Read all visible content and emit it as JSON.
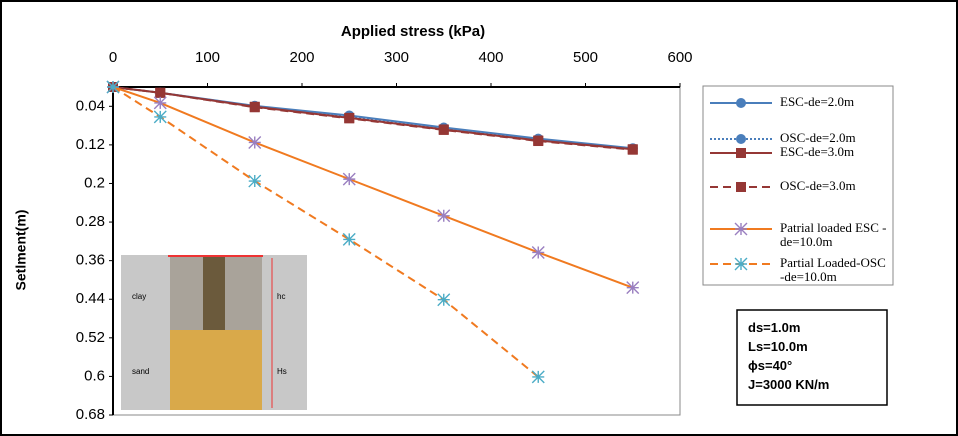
{
  "chart_data": {
    "type": "line",
    "title": "Applied stress (kPa)",
    "y_label": "Setlment(m)",
    "x": [
      0,
      50,
      150,
      250,
      350,
      450,
      550
    ],
    "xlim": [
      0,
      600
    ],
    "xticks": [
      0,
      100,
      200,
      300,
      400,
      500,
      600
    ],
    "ylim": [
      0,
      0.68
    ],
    "yticks": [
      0.04,
      0.12,
      0.2,
      0.28,
      0.36,
      0.44,
      0.52,
      0.6,
      0.68
    ],
    "y_inverted": true,
    "x_axis_top": true,
    "series": [
      {
        "name": "ESC-de=2.0m",
        "color": "#4a7ebb",
        "marker_color": "#4a7ebb",
        "marker": "circle",
        "dash": "solid",
        "values": [
          0,
          0.012,
          0.039,
          0.059,
          0.084,
          0.107,
          0.127
        ]
      },
      {
        "name": "OSC-de=2.0m",
        "color": "#4a7ebb",
        "marker_color": "#4a7ebb",
        "marker": "circle",
        "dash": "dotted",
        "values": [
          0,
          0.012,
          0.04,
          0.061,
          0.086,
          0.109,
          0.128
        ]
      },
      {
        "name": "ESC-de=3.0m",
        "color": "#953735",
        "marker_color": "#953735",
        "marker": "square",
        "dash": "solid",
        "values": [
          0,
          0.012,
          0.041,
          0.064,
          0.088,
          0.111,
          0.129
        ]
      },
      {
        "name": "OSC-de=3.0m",
        "color": "#953735",
        "marker_color": "#953735",
        "marker": "square",
        "dash": "dashed",
        "values": [
          0,
          0.012,
          0.042,
          0.065,
          0.089,
          0.112,
          0.13
        ]
      },
      {
        "name": "Patrial loaded ESC -de=10.0m",
        "color": "#f07a20",
        "marker_color": "#9a7fc0",
        "marker": "star",
        "dash": "solid",
        "values": [
          0,
          0.033,
          0.115,
          0.191,
          0.267,
          0.343,
          0.416
        ]
      },
      {
        "name": "Partial Loaded-OSC -de=10.0m",
        "color": "#f07a20",
        "marker_color": "#4bacc6",
        "marker": "star",
        "dash": "dashed",
        "values": [
          0,
          0.062,
          0.195,
          0.316,
          0.441,
          0.601,
          null
        ]
      }
    ],
    "annotations": [
      "ds=1.0m",
      "Ls=10.0m",
      "ϕs=40°",
      "J=3000 KN/m"
    ],
    "inset": {
      "labels": [
        "clay",
        "hc",
        "sand",
        "Hs"
      ]
    }
  }
}
